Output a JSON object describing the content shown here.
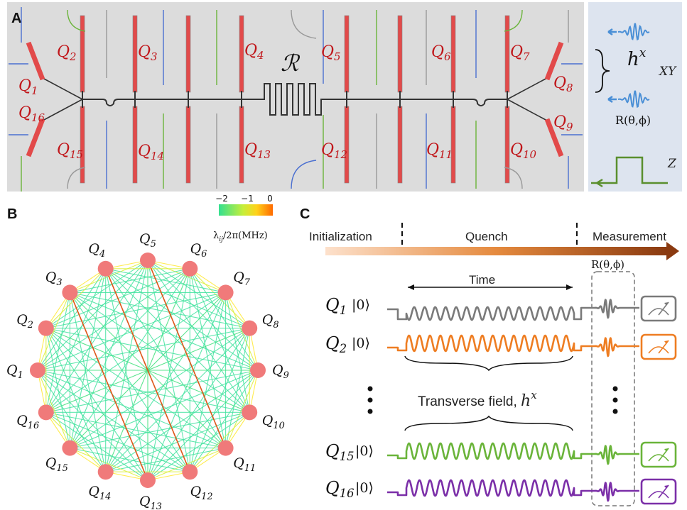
{
  "panel_a": {
    "letter": "A",
    "resonator_label": "ℛ",
    "qubits": [
      {
        "id": "Q1",
        "base": "Q",
        "sub": "1"
      },
      {
        "id": "Q2",
        "base": "Q",
        "sub": "2"
      },
      {
        "id": "Q3",
        "base": "Q",
        "sub": "3"
      },
      {
        "id": "Q4",
        "base": "Q",
        "sub": "4"
      },
      {
        "id": "Q5",
        "base": "Q",
        "sub": "5"
      },
      {
        "id": "Q6",
        "base": "Q",
        "sub": "6"
      },
      {
        "id": "Q7",
        "base": "Q",
        "sub": "7"
      },
      {
        "id": "Q8",
        "base": "Q",
        "sub": "8"
      },
      {
        "id": "Q9",
        "base": "Q",
        "sub": "9"
      },
      {
        "id": "Q10",
        "base": "Q",
        "sub": "10"
      },
      {
        "id": "Q11",
        "base": "Q",
        "sub": "11"
      },
      {
        "id": "Q12",
        "base": "Q",
        "sub": "12"
      },
      {
        "id": "Q13",
        "base": "Q",
        "sub": "13"
      },
      {
        "id": "Q14",
        "base": "Q",
        "sub": "14"
      },
      {
        "id": "Q15",
        "base": "Q",
        "sub": "15"
      },
      {
        "id": "Q16",
        "base": "Q",
        "sub": "16"
      }
    ],
    "side": {
      "hx_base": "h",
      "hx_sup": "x",
      "rotation": "R(θ,ϕ)",
      "xy": "XY",
      "z": "Z"
    }
  },
  "panel_b": {
    "letter": "B",
    "colorbar": {
      "ticks": [
        "−2",
        "−1",
        "0"
      ],
      "label": "λ",
      "label_sub": "ij",
      "label_rest": "/2π(MHz)",
      "colors": [
        "#33e090",
        "#c6ee3a",
        "#ffd21a",
        "#ff6a00"
      ]
    },
    "node_color": "#f07a7a",
    "nodes": [
      "5",
      "6",
      "7",
      "8",
      "9",
      "10",
      "11",
      "12",
      "13",
      "14",
      "15",
      "16",
      "1",
      "2",
      "3",
      "4"
    ]
  },
  "panel_c": {
    "letter": "C",
    "stages": [
      "Initialization",
      "Quench",
      "Measurement"
    ],
    "rotation": "R(θ,ϕ)",
    "time": "Time",
    "transverse": "Transverse field, ",
    "hx_base": "h",
    "hx_sup": "x",
    "ket": "|0⟩",
    "rows": [
      {
        "base": "Q",
        "sub": "1",
        "color": "#7a7a7a"
      },
      {
        "base": "Q",
        "sub": "2",
        "color": "#ee7d22"
      },
      {
        "base": "Q",
        "sub": "15",
        "color": "#6ab43a"
      },
      {
        "base": "Q",
        "sub": "16",
        "color": "#7b2fa8"
      }
    ]
  }
}
